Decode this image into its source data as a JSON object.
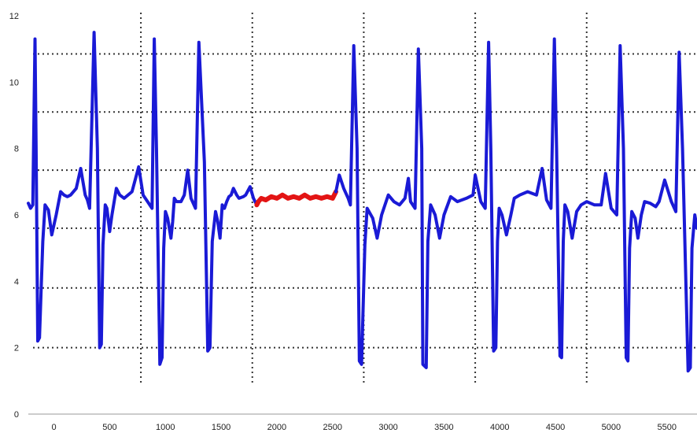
{
  "chart_data": {
    "type": "line",
    "title": "",
    "xlabel": "",
    "ylabel": "",
    "xlim": [
      -230,
      5770
    ],
    "ylim": [
      0,
      12
    ],
    "x_ticks": [
      0,
      500,
      1000,
      1500,
      2000,
      2500,
      3000,
      3500,
      4000,
      4500,
      5000,
      5500
    ],
    "x_tick_labels": [
      "0",
      "500",
      "1000",
      "1500",
      "2000",
      "2500",
      "3000",
      "3500",
      "4000",
      "4500",
      "5000",
      "5500"
    ],
    "y_ticks": [
      0,
      2,
      4,
      6,
      8,
      10,
      12
    ],
    "y_tick_labels": [
      "0",
      "2",
      "4",
      "6",
      "8",
      "10",
      "12"
    ],
    "grid": {
      "style": "dotted",
      "horizontal_values": [
        2.0,
        3.8,
        5.6,
        7.35,
        9.1,
        10.85
      ],
      "vertical_values": [
        780,
        1780,
        2780,
        3780,
        4780
      ]
    },
    "legend": "none",
    "series": [
      {
        "color": "#1a1ad6",
        "x": [
          -230,
          -210,
          -190,
          -170,
          -160,
          -145,
          -130,
          -100,
          -80,
          -50,
          -20,
          20,
          60,
          90,
          120,
          150,
          200,
          240,
          280,
          300,
          320,
          360,
          390,
          410,
          425,
          440,
          460,
          475,
          500,
          520,
          560,
          590,
          630,
          700,
          760,
          800,
          840,
          880,
          900,
          920,
          950,
          970,
          985,
          1000,
          1020,
          1050,
          1065,
          1080,
          1100,
          1140,
          1170,
          1200,
          1230,
          1270,
          1300,
          1350,
          1380,
          1400,
          1420,
          1450,
          1470,
          1490,
          1510,
          1530,
          1550,
          1570,
          1590,
          1610,
          1640,
          1660,
          1700,
          1720,
          1760,
          1790,
          1820
        ],
        "y": [
          6.35,
          6.2,
          6.3,
          11.3,
          8.0,
          2.2,
          2.3,
          5.2,
          6.3,
          6.15,
          5.4,
          6.0,
          6.7,
          6.6,
          6.55,
          6.6,
          6.8,
          7.4,
          6.6,
          6.45,
          6.2,
          11.5,
          8.0,
          2.0,
          2.1,
          5.1,
          6.3,
          6.2,
          5.5,
          6.0,
          6.8,
          6.6,
          6.5,
          6.7,
          7.45,
          6.6,
          6.4,
          6.2,
          11.3,
          8.0,
          1.5,
          1.7,
          5.0,
          6.1,
          5.9,
          5.3,
          5.8,
          6.5,
          6.4,
          6.4,
          6.6,
          7.35,
          6.5,
          6.2,
          11.2,
          7.6,
          1.9,
          2.0,
          5.2,
          6.1,
          5.8,
          5.3,
          6.3,
          6.2,
          6.4,
          6.55,
          6.6,
          6.8,
          6.6,
          6.5,
          6.55,
          6.6,
          6.85,
          6.5,
          6.3
        ]
      },
      {
        "color": "#e31414",
        "x": [
          1820,
          1835,
          1860,
          1900,
          1950,
          2000,
          2050,
          2100,
          2150,
          2200,
          2250,
          2300,
          2350,
          2400,
          2450,
          2500,
          2530
        ],
        "y": [
          6.3,
          6.4,
          6.5,
          6.45,
          6.55,
          6.5,
          6.6,
          6.5,
          6.55,
          6.5,
          6.6,
          6.5,
          6.55,
          6.5,
          6.55,
          6.5,
          6.7
        ]
      },
      {
        "color": "#1a1ad6",
        "x": [
          2530,
          2560,
          2600,
          2640,
          2660,
          2690,
          2720,
          2740,
          2760,
          2790,
          2810,
          2860,
          2900,
          2940,
          3000,
          3050,
          3100,
          3150,
          3180,
          3200,
          3240,
          3270,
          3300,
          3310,
          3340,
          3355,
          3380,
          3420,
          3460,
          3500,
          3560,
          3620,
          3700,
          3760,
          3780,
          3830,
          3870,
          3900,
          3920,
          3945,
          3965,
          3980,
          3995,
          4020,
          4060,
          4100,
          4130,
          4180,
          4250,
          4330,
          4380,
          4420,
          4460,
          4490,
          4510,
          4540,
          4555,
          4570,
          4585,
          4610,
          4650,
          4690,
          4730,
          4780,
          4850,
          4910,
          4950,
          5000,
          5050,
          5080,
          5110,
          5135,
          5150,
          5165,
          5185,
          5215,
          5240,
          5270,
          5300,
          5350,
          5400,
          5430,
          5480,
          5540,
          5580,
          5610,
          5640,
          5690,
          5710,
          5725,
          5750,
          5770
        ],
        "y": [
          6.7,
          7.2,
          6.8,
          6.5,
          6.3,
          11.1,
          8.0,
          1.6,
          1.5,
          5.1,
          6.2,
          5.9,
          5.3,
          6.0,
          6.6,
          6.4,
          6.3,
          6.5,
          7.1,
          6.4,
          6.2,
          11.0,
          8.0,
          1.5,
          1.4,
          5.2,
          6.3,
          6.0,
          5.3,
          6.0,
          6.55,
          6.4,
          6.5,
          6.6,
          7.2,
          6.4,
          6.2,
          11.2,
          8.0,
          1.9,
          2.0,
          5.2,
          6.2,
          6.0,
          5.4,
          6.0,
          6.5,
          6.6,
          6.7,
          6.6,
          7.4,
          6.45,
          6.2,
          11.3,
          8.0,
          1.75,
          1.7,
          5.2,
          6.3,
          6.1,
          5.3,
          6.1,
          6.3,
          6.4,
          6.3,
          6.3,
          7.25,
          6.2,
          6.0,
          11.1,
          8.0,
          1.7,
          1.6,
          5.0,
          6.1,
          5.9,
          5.3,
          6.0,
          6.4,
          6.35,
          6.25,
          6.4,
          7.05,
          6.4,
          6.1,
          10.9,
          8.0,
          1.3,
          1.4,
          5.0,
          6.0,
          5.6
        ]
      }
    ]
  }
}
